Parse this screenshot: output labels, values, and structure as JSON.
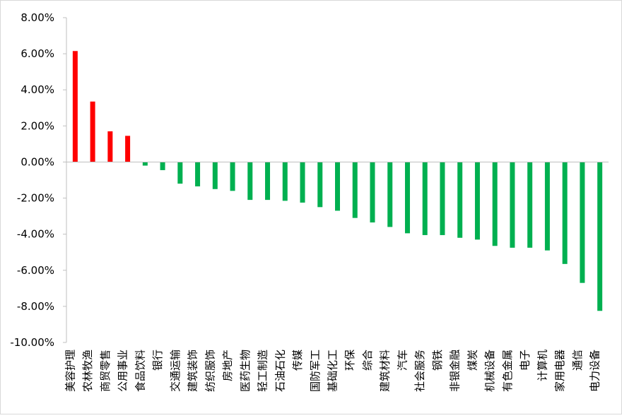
{
  "chart_data": {
    "type": "bar",
    "title": "",
    "xlabel": "",
    "ylabel": "",
    "ylim": [
      -0.1,
      0.08
    ],
    "y_ticks": [
      0.08,
      0.06,
      0.04,
      0.02,
      0.0,
      -0.02,
      -0.04,
      -0.06,
      -0.08,
      -0.1
    ],
    "y_tick_labels": [
      "8.00%",
      "6.00%",
      "4.00%",
      "2.00%",
      "0.00%",
      "-2.00%",
      "-4.00%",
      "-6.00%",
      "-8.00%",
      "-10.00%"
    ],
    "grid": false,
    "legend": "none",
    "colors": {
      "positive": "#ff0000",
      "negative": "#00b050",
      "axis": "#bfbfbf",
      "text": "#000000"
    },
    "categories": [
      "美容护理",
      "农林牧渔",
      "商贸零售",
      "公用事业",
      "食品饮料",
      "银行",
      "交通运输",
      "建筑装饰",
      "纺织服饰",
      "房地产",
      "医药生物",
      "轻工制造",
      "石油石化",
      "传媒",
      "国防军工",
      "基础化工",
      "环保",
      "综合",
      "建筑材料",
      "汽车",
      "社会服务",
      "钢铁",
      "非银金融",
      "煤炭",
      "机械设备",
      "有色金属",
      "电子",
      "计算机",
      "家用电器",
      "通信",
      "电力设备"
    ],
    "values": [
      0.0615,
      0.0335,
      0.017,
      0.0145,
      -0.002,
      -0.0045,
      -0.012,
      -0.0135,
      -0.015,
      -0.016,
      -0.021,
      -0.021,
      -0.0215,
      -0.0225,
      -0.025,
      -0.027,
      -0.031,
      -0.0335,
      -0.036,
      -0.0395,
      -0.0405,
      -0.0405,
      -0.042,
      -0.043,
      -0.0465,
      -0.0475,
      -0.0475,
      -0.049,
      -0.0565,
      -0.067,
      -0.0825
    ]
  }
}
